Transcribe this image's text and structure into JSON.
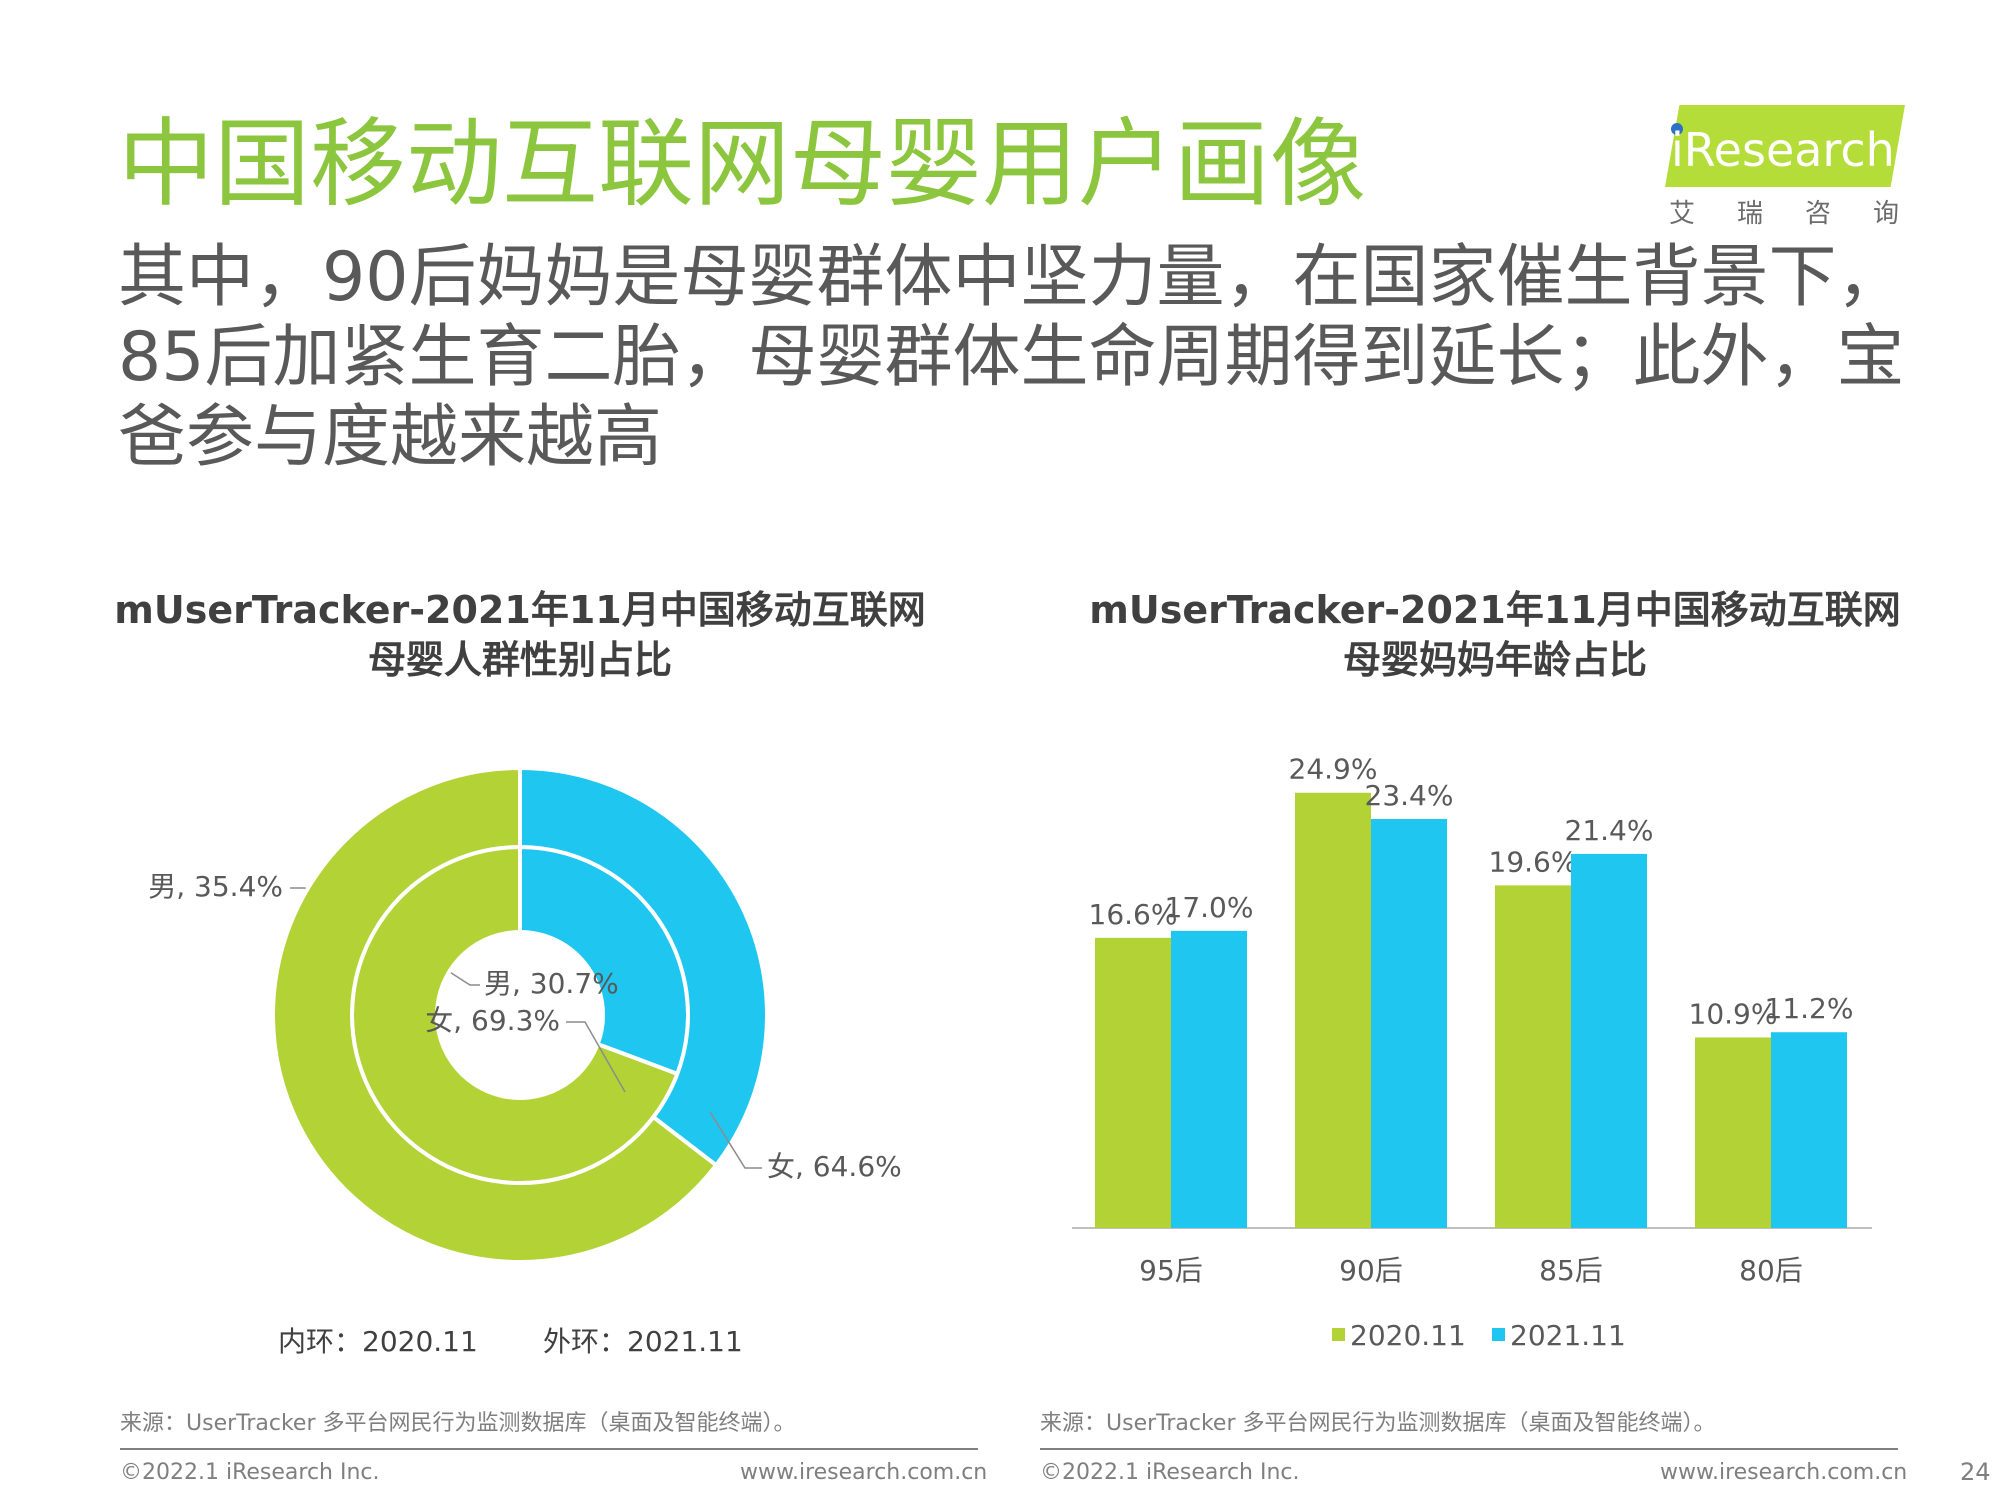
{
  "page": {
    "title": "中国移动互联网母婴用户画像",
    "subtitle": "其中，90后妈妈是母婴群体中坚力量，在国家催生背景下，85后加紧生育二胎，母婴群体生命周期得到延长；此外，宝爸参与度越来越高",
    "page_number": "24"
  },
  "logo": {
    "name": "iResearch",
    "sub": "艾瑞咨询"
  },
  "chart_data": [
    {
      "type": "pie",
      "title": [
        "mUserTracker-2021年11月中国移动互联网",
        "母婴人群性别占比"
      ],
      "rings": [
        {
          "name": "内环：2020.11",
          "slices": [
            {
              "label": "男",
              "value": 30.7,
              "text": "男, 30.7%"
            },
            {
              "label": "女",
              "value": 69.3,
              "text": "女, 69.3%"
            }
          ]
        },
        {
          "name": "外环：2021.11",
          "slices": [
            {
              "label": "男",
              "value": 35.4,
              "text": "男, 35.4%"
            },
            {
              "label": "女",
              "value": 64.6,
              "text": "女, 64.6%"
            }
          ]
        }
      ],
      "colors": {
        "男": "#1ec6f0",
        "女": "#b2d235"
      },
      "legend_notes": [
        "内环：2020.11",
        "外环：2021.11"
      ]
    },
    {
      "type": "bar",
      "title": [
        "mUserTracker-2021年11月中国移动互联网",
        "母婴妈妈年龄占比"
      ],
      "categories": [
        "95后",
        "90后",
        "85后",
        "80后"
      ],
      "series": [
        {
          "name": "2020.11",
          "values": [
            16.6,
            24.9,
            19.6,
            10.9
          ],
          "labels": [
            "16.6%",
            "24.9%",
            "19.6%",
            "10.9%"
          ],
          "color": "#b2d235"
        },
        {
          "name": "2021.11",
          "values": [
            17.0,
            23.4,
            21.4,
            11.2
          ],
          "labels": [
            "17.0%",
            "23.4%",
            "21.4%",
            "11.2%"
          ],
          "color": "#1ec6f0"
        }
      ],
      "ylim": [
        0,
        25
      ],
      "grid": false,
      "legend": "bottom"
    }
  ],
  "footer": {
    "source": "来源：UserTracker 多平台网民行为监测数据库（桌面及智能终端）。",
    "copyright": "©2022.1 iResearch Inc.",
    "website": "www.iresearch.com.cn"
  }
}
